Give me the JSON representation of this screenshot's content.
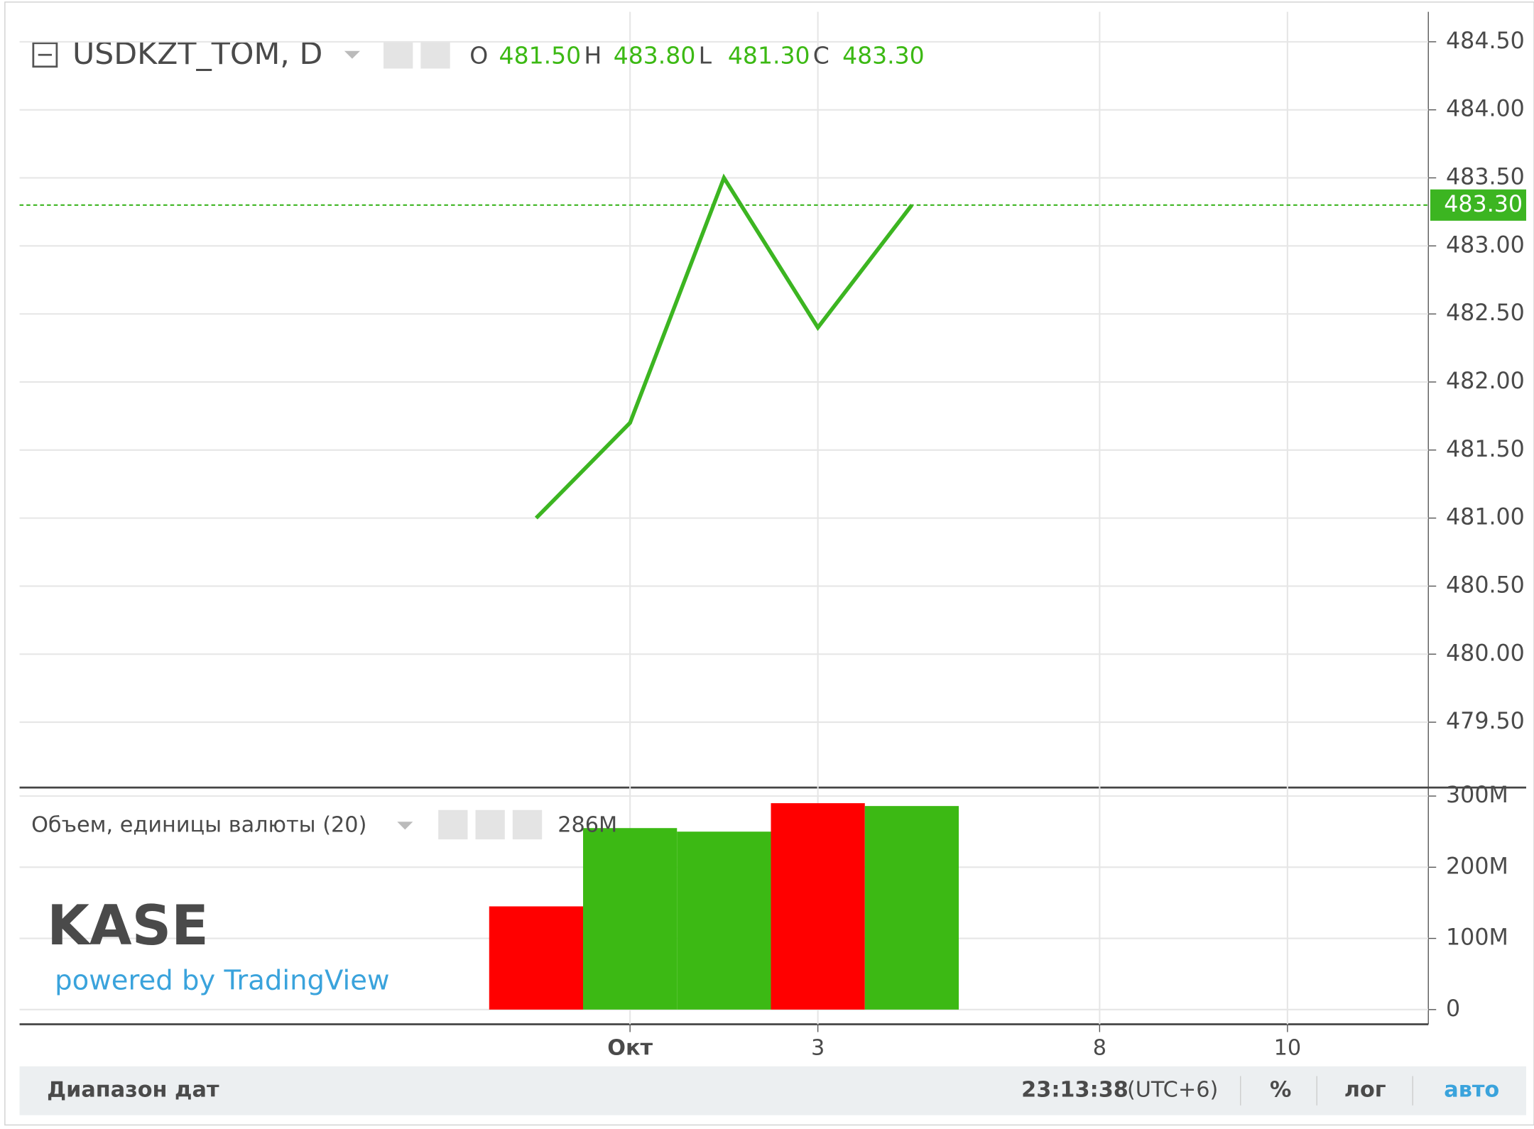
{
  "header": {
    "symbol": "USDKZT_TOM, D",
    "ohlc": [
      {
        "key": "O",
        "value": "481.50"
      },
      {
        "key": "H",
        "value": "483.80"
      },
      {
        "key": "L",
        "value": "481.30"
      },
      {
        "key": "C",
        "value": "483.30"
      }
    ]
  },
  "chart_data": [
    {
      "type": "line",
      "x": [
        0,
        1,
        2,
        3,
        4
      ],
      "series": [
        {
          "color": "#3cb521",
          "values": [
            481.0,
            481.7,
            483.5,
            482.4,
            483.3
          ]
        }
      ],
      "xlim": [
        -5.5,
        9.5
      ],
      "xticks": [
        {
          "value": 1,
          "label": "Окт"
        },
        {
          "value": 3,
          "label": "3"
        },
        {
          "value": 6,
          "label": "8"
        },
        {
          "value": 8,
          "label": "10"
        }
      ],
      "ylim": [
        479.02,
        484.72
      ],
      "yticks": [
        {
          "value": 479.5,
          "label": "479.50"
        },
        {
          "value": 480,
          "label": "480.00"
        },
        {
          "value": 480.5,
          "label": "480.50"
        },
        {
          "value": 481,
          "label": "481.00"
        },
        {
          "value": 481.5,
          "label": "481.50"
        },
        {
          "value": 482,
          "label": "482.00"
        },
        {
          "value": 482.5,
          "label": "482.50"
        },
        {
          "value": 483,
          "label": "483.00"
        },
        {
          "value": 483.5,
          "label": "483.50"
        },
        {
          "value": 484,
          "label": "484.00"
        },
        {
          "value": 484.5,
          "label": "484.50"
        }
      ],
      "last_value": {
        "value": 483.3,
        "label": "483.30"
      },
      "grid": true
    },
    {
      "type": "bar",
      "title": "Объем, единицы валюты (20)",
      "legend_value": {
        "value": 286000000,
        "label": "286M"
      },
      "x": [
        0,
        1,
        2,
        3,
        4
      ],
      "values": [
        145000000,
        255000000,
        250000000,
        290000000,
        286000000
      ],
      "colors": [
        "#ff0000",
        "#3cb914",
        "#3cb914",
        "#ff0000",
        "#3cb914"
      ],
      "xlim": [
        -5.5,
        9.5
      ],
      "ylim": [
        -20600000,
        312000000
      ],
      "yticks": [
        {
          "value": 0,
          "label": "0"
        },
        {
          "value": 100000000,
          "label": "100M"
        },
        {
          "value": 200000000,
          "label": "200M"
        },
        {
          "value": 300000000,
          "label": "300M"
        }
      ],
      "grid": true
    }
  ],
  "logo": {
    "name": "KASE",
    "tagline": "powered by TradingView"
  },
  "footer": {
    "range": "Диапазон дат",
    "time": "23:13:38",
    "tz": "(UTC+6)",
    "percent": "%",
    "log": "лог",
    "auto": "авто"
  }
}
